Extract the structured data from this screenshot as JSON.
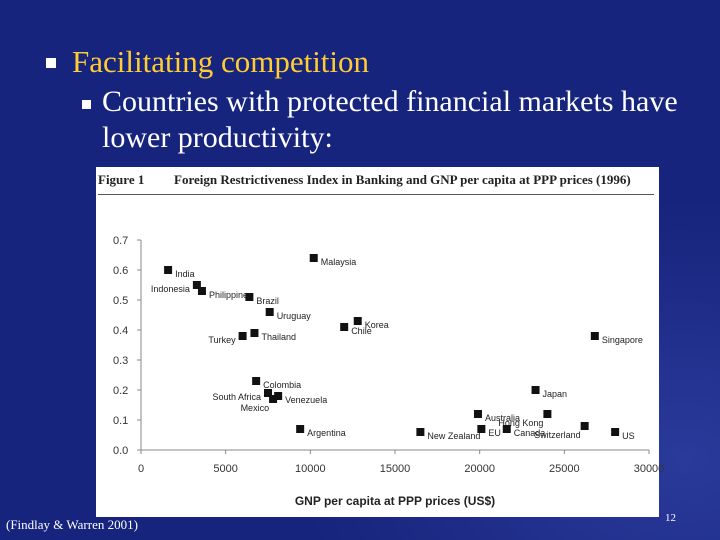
{
  "slide": {
    "bullet1": "Facilitating competition",
    "bullet2": "Countries with protected financial markets have lower productivity:",
    "citation": "(Findlay & Warren 2001)",
    "page_number": "12"
  },
  "colors": {
    "background": "#17247d",
    "bullet1_text": "#ffcc33",
    "bullet2_text": "#ffffff",
    "marker": "#111111"
  },
  "figure": {
    "label": "Figure 1",
    "title": "Foreign Restrictiveness Index in Banking and GNP per capita at PPP prices (1996)"
  },
  "chart_data": {
    "type": "scatter",
    "title": "",
    "xlabel": "GNP per capita at PPP prices (US$)",
    "ylabel": "",
    "xlim": [
      0,
      30000
    ],
    "ylim": [
      0,
      0.7
    ],
    "xticks": [
      "0",
      "5000",
      "10000",
      "15000",
      "20000",
      "25000",
      "30000"
    ],
    "yticks": [
      "0.0",
      "0.1",
      "0.2",
      "0.3",
      "0.4",
      "0.5",
      "0.6",
      "0.7"
    ],
    "grid": false,
    "points": [
      {
        "label": "Malaysia",
        "x": 10200,
        "y": 0.64
      },
      {
        "label": "India",
        "x": 1600,
        "y": 0.6
      },
      {
        "label": "Indonesia",
        "x": 3300,
        "y": 0.55
      },
      {
        "label": "Philippines",
        "x": 3600,
        "y": 0.53
      },
      {
        "label": "Brazil",
        "x": 6400,
        "y": 0.51
      },
      {
        "label": "Uruguay",
        "x": 7600,
        "y": 0.46
      },
      {
        "label": "Korea",
        "x": 12800,
        "y": 0.43
      },
      {
        "label": "Chile",
        "x": 12000,
        "y": 0.41
      },
      {
        "label": "Turkey",
        "x": 6000,
        "y": 0.38
      },
      {
        "label": "Thailand",
        "x": 6700,
        "y": 0.39
      },
      {
        "label": "Singapore",
        "x": 26800,
        "y": 0.38
      },
      {
        "label": "Colombia",
        "x": 6800,
        "y": 0.23
      },
      {
        "label": "Japan",
        "x": 23300,
        "y": 0.2
      },
      {
        "label": "South Africa",
        "x": 7500,
        "y": 0.19
      },
      {
        "label": "Venezuela",
        "x": 8100,
        "y": 0.18
      },
      {
        "label": "Mexico",
        "x": 7800,
        "y": 0.17
      },
      {
        "label": "Australia",
        "x": 19900,
        "y": 0.12
      },
      {
        "label": "Hong Kong",
        "x": 24000,
        "y": 0.12
      },
      {
        "label": "Argentina",
        "x": 9400,
        "y": 0.07
      },
      {
        "label": "New Zealand",
        "x": 16500,
        "y": 0.06
      },
      {
        "label": "EU",
        "x": 20100,
        "y": 0.07
      },
      {
        "label": "Canada",
        "x": 21600,
        "y": 0.07
      },
      {
        "label": "Switzerland",
        "x": 26200,
        "y": 0.08
      },
      {
        "label": "US",
        "x": 28000,
        "y": 0.06
      }
    ]
  }
}
